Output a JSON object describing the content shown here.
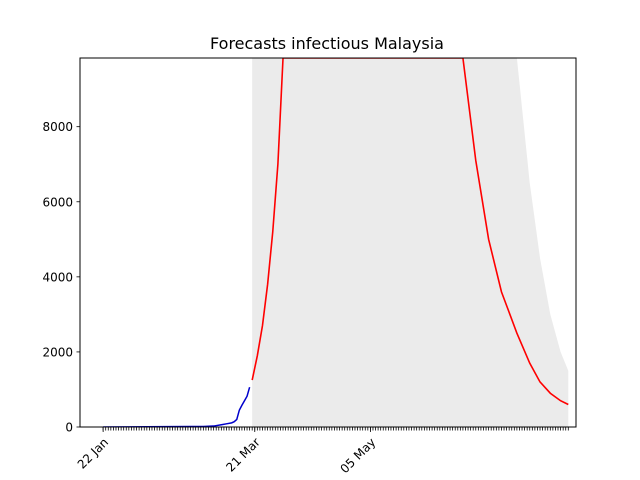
{
  "chart_data": {
    "type": "line",
    "title": "Forecasts infectious Malaysia",
    "xlabel": "",
    "ylabel": "",
    "x_type": "date",
    "xlim": [
      "2020-01-13",
      "2020-07-24"
    ],
    "ylim": [
      0,
      9830
    ],
    "x_tick_labels": [
      "22 Jan",
      "21 Mar",
      "05 May"
    ],
    "x_tick_dates": [
      "2020-01-22",
      "2020-03-21",
      "2020-05-05"
    ],
    "y_ticks": [
      0,
      2000,
      4000,
      6000,
      8000
    ],
    "minor_x_ticks_daily": true,
    "grid": false,
    "legend": "none",
    "colors": {
      "observed": "#0000cc",
      "forecast": "#ff0000",
      "interval": "#ebebeb"
    },
    "series": [
      {
        "role": "observed",
        "x": [
          "2020-01-22",
          "2020-02-01",
          "2020-02-15",
          "2020-02-25",
          "2020-03-01",
          "2020-03-05",
          "2020-03-08",
          "2020-03-10",
          "2020-03-12",
          "2020-03-13",
          "2020-03-14",
          "2020-03-15",
          "2020-03-16",
          "2020-03-17",
          "2020-03-18",
          "2020-03-19"
        ],
        "y": [
          0,
          3,
          10,
          12,
          15,
          25,
          60,
          85,
          110,
          140,
          200,
          450,
          580,
          700,
          820,
          1060
        ]
      },
      {
        "role": "forecast",
        "x": [
          "2020-03-20",
          "2020-03-22",
          "2020-03-24",
          "2020-03-26",
          "2020-03-28",
          "2020-03-30",
          "2020-04-01",
          "2020-06-10",
          "2020-06-15",
          "2020-06-20",
          "2020-06-25",
          "2020-07-01",
          "2020-07-06",
          "2020-07-10",
          "2020-07-14",
          "2020-07-18",
          "2020-07-21"
        ],
        "y": [
          1250,
          1900,
          2700,
          3800,
          5200,
          7000,
          9830,
          9830,
          7100,
          5000,
          3600,
          2500,
          1700,
          1200,
          900,
          700,
          600
        ]
      }
    ],
    "interval": {
      "x": [
        "2020-03-20",
        "2020-03-21",
        "2020-03-22",
        "2020-03-23",
        "2020-03-24",
        "2020-03-26",
        "2020-07-01",
        "2020-07-06",
        "2020-07-10",
        "2020-07-14",
        "2020-07-18",
        "2020-07-21"
      ],
      "lower": [
        0,
        0,
        0,
        0,
        0,
        0,
        0,
        0,
        0,
        0,
        0,
        0
      ],
      "upper": [
        9830,
        9830,
        9830,
        9830,
        9830,
        9830,
        9830,
        6500,
        4500,
        3000,
        2000,
        1500
      ]
    }
  }
}
